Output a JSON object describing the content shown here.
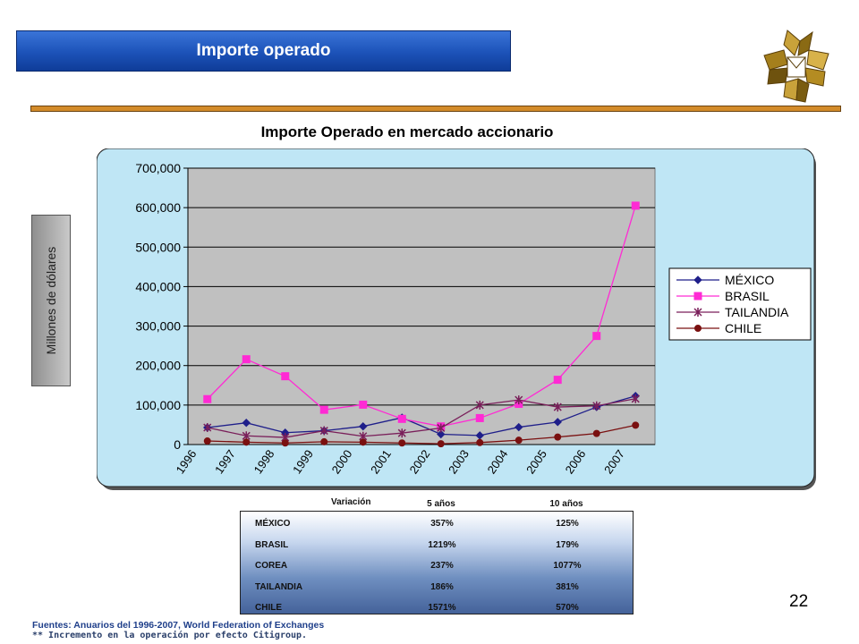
{
  "header": {
    "title": "Importe operado"
  },
  "chart_title": "Importe Operado en mercado accionario",
  "ylabel": "Millones de dólares",
  "chart_data": {
    "type": "line",
    "x": [
      "1996",
      "1997",
      "1998",
      "1999",
      "2000",
      "2001",
      "2002",
      "2003",
      "2004",
      "2005",
      "2006",
      "2007"
    ],
    "ylim": [
      0,
      700000
    ],
    "yticks": [
      "0",
      "100,000",
      "200,000",
      "300,000",
      "400,000",
      "500,000",
      "600,000",
      "700,000"
    ],
    "ylabel": "Millones de dólares",
    "grid": true,
    "legend_position": "right",
    "series": [
      {
        "name": "MÉXICO",
        "color": "#1f1f8a",
        "marker": "diamond",
        "values": [
          43000,
          55000,
          30000,
          35000,
          46000,
          68000,
          26000,
          23000,
          44000,
          57000,
          95000,
          123000
        ]
      },
      {
        "name": "BRASIL",
        "color": "#ff2ad4",
        "marker": "square",
        "values": [
          115000,
          216000,
          173000,
          88000,
          101000,
          65000,
          46000,
          67000,
          103000,
          164000,
          275000,
          605000
        ]
      },
      {
        "name": "TAILANDIA",
        "color": "#7a1f5a",
        "marker": "star",
        "values": [
          43000,
          22000,
          18000,
          35000,
          21000,
          29000,
          42000,
          100000,
          113000,
          95000,
          98000,
          116000
        ]
      },
      {
        "name": "CHILE",
        "color": "#7a1010",
        "marker": "circle",
        "values": [
          9000,
          6000,
          4000,
          7000,
          6000,
          4000,
          2000,
          5000,
          11000,
          19000,
          28000,
          49000
        ]
      }
    ]
  },
  "variation_table": {
    "header_label": "Variación",
    "col_5": "5 años",
    "col_10": "10 años",
    "rows": [
      {
        "name": "MÉXICO",
        "five": "357%",
        "ten": "125%"
      },
      {
        "name": "BRASIL",
        "five": "1219%",
        "ten": "179%"
      },
      {
        "name": "COREA",
        "five": "237%",
        "ten": "1077%"
      },
      {
        "name": "TAILANDIA",
        "five": "186%",
        "ten": "381%"
      },
      {
        "name": "CHILE",
        "five": "1571%",
        "ten": "570%"
      }
    ]
  },
  "page_number": "22",
  "footer": {
    "line1": "Fuentes: Anuarios del 1996-2007, World Federation of Exchanges",
    "line2": "** Incremento en la operación por efecto Citigroup."
  },
  "colors": {
    "banner": "#1c52b8",
    "rule": "#d38b2a",
    "plot_bg": "#c0c0c0",
    "chart_bg": "#bfe6f5"
  }
}
